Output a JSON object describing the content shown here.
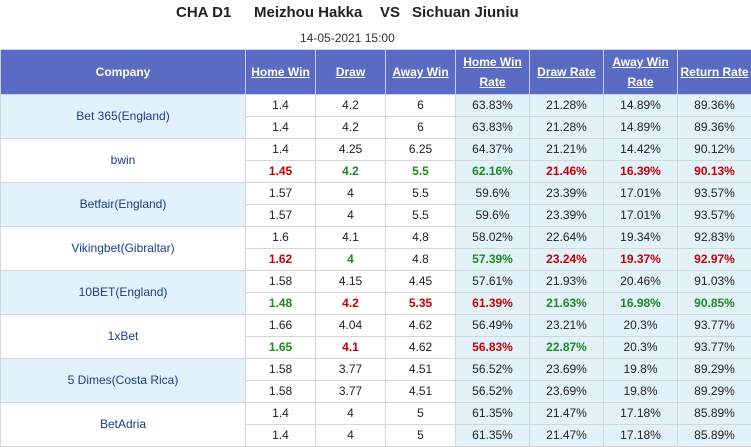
{
  "header": {
    "league": "CHA D1",
    "home_team": "Meizhou Hakka",
    "vs": "VS",
    "away_team": "Sichuan Jiuniu",
    "datetime": "14-05-2021 15:00"
  },
  "columns": {
    "company": "Company",
    "home_win": "Home Win",
    "draw": "Draw",
    "away_win": "Away Win",
    "home_win_rate": "Home Win Rate",
    "draw_rate": "Draw Rate",
    "away_win_rate": "Away Win Rate",
    "return_rate": "Return Rate"
  },
  "colors": {
    "header_bg": "#5a6bc3",
    "red": "#cc0000",
    "green": "#1f8a1f",
    "company_link": "#1a3d8f",
    "rate_bg": "#e2f2fa"
  },
  "rows": [
    {
      "company": "Bet 365(England)",
      "open": {
        "home": {
          "v": "1.4",
          "c": ""
        },
        "draw": {
          "v": "4.2",
          "c": ""
        },
        "away": {
          "v": "6",
          "c": ""
        },
        "hr": {
          "v": "63.83%",
          "c": ""
        },
        "dr": {
          "v": "21.28%",
          "c": ""
        },
        "ar": {
          "v": "14.89%",
          "c": ""
        },
        "rr": {
          "v": "89.36%",
          "c": ""
        }
      },
      "close": {
        "home": {
          "v": "1.4",
          "c": ""
        },
        "draw": {
          "v": "4.2",
          "c": ""
        },
        "away": {
          "v": "6",
          "c": ""
        },
        "hr": {
          "v": "63.83%",
          "c": ""
        },
        "dr": {
          "v": "21.28%",
          "c": ""
        },
        "ar": {
          "v": "14.89%",
          "c": ""
        },
        "rr": {
          "v": "89.36%",
          "c": ""
        }
      }
    },
    {
      "company": "bwin",
      "open": {
        "home": {
          "v": "1.4",
          "c": ""
        },
        "draw": {
          "v": "4.25",
          "c": ""
        },
        "away": {
          "v": "6.25",
          "c": ""
        },
        "hr": {
          "v": "64.37%",
          "c": ""
        },
        "dr": {
          "v": "21.21%",
          "c": ""
        },
        "ar": {
          "v": "14.42%",
          "c": ""
        },
        "rr": {
          "v": "90.12%",
          "c": ""
        }
      },
      "close": {
        "home": {
          "v": "1.45",
          "c": "red"
        },
        "draw": {
          "v": "4.2",
          "c": "green"
        },
        "away": {
          "v": "5.5",
          "c": "green"
        },
        "hr": {
          "v": "62.16%",
          "c": "green"
        },
        "dr": {
          "v": "21.46%",
          "c": "red"
        },
        "ar": {
          "v": "16.39%",
          "c": "red"
        },
        "rr": {
          "v": "90.13%",
          "c": "red"
        }
      }
    },
    {
      "company": "Betfair(England)",
      "open": {
        "home": {
          "v": "1.57",
          "c": ""
        },
        "draw": {
          "v": "4",
          "c": ""
        },
        "away": {
          "v": "5.5",
          "c": ""
        },
        "hr": {
          "v": "59.6%",
          "c": ""
        },
        "dr": {
          "v": "23.39%",
          "c": ""
        },
        "ar": {
          "v": "17.01%",
          "c": ""
        },
        "rr": {
          "v": "93.57%",
          "c": ""
        }
      },
      "close": {
        "home": {
          "v": "1.57",
          "c": ""
        },
        "draw": {
          "v": "4",
          "c": ""
        },
        "away": {
          "v": "5.5",
          "c": ""
        },
        "hr": {
          "v": "59.6%",
          "c": ""
        },
        "dr": {
          "v": "23.39%",
          "c": ""
        },
        "ar": {
          "v": "17.01%",
          "c": ""
        },
        "rr": {
          "v": "93.57%",
          "c": ""
        }
      }
    },
    {
      "company": "Vikingbet(Gibraltar)",
      "open": {
        "home": {
          "v": "1.6",
          "c": ""
        },
        "draw": {
          "v": "4.1",
          "c": ""
        },
        "away": {
          "v": "4.8",
          "c": ""
        },
        "hr": {
          "v": "58.02%",
          "c": ""
        },
        "dr": {
          "v": "22.64%",
          "c": ""
        },
        "ar": {
          "v": "19.34%",
          "c": ""
        },
        "rr": {
          "v": "92.83%",
          "c": ""
        }
      },
      "close": {
        "home": {
          "v": "1.62",
          "c": "red"
        },
        "draw": {
          "v": "4",
          "c": "green"
        },
        "away": {
          "v": "4.8",
          "c": ""
        },
        "hr": {
          "v": "57.39%",
          "c": "green"
        },
        "dr": {
          "v": "23.24%",
          "c": "red"
        },
        "ar": {
          "v": "19.37%",
          "c": "red"
        },
        "rr": {
          "v": "92.97%",
          "c": "red"
        }
      }
    },
    {
      "company": "10BET(England)",
      "open": {
        "home": {
          "v": "1.58",
          "c": ""
        },
        "draw": {
          "v": "4.15",
          "c": ""
        },
        "away": {
          "v": "4.45",
          "c": ""
        },
        "hr": {
          "v": "57.61%",
          "c": ""
        },
        "dr": {
          "v": "21.93%",
          "c": ""
        },
        "ar": {
          "v": "20.46%",
          "c": ""
        },
        "rr": {
          "v": "91.03%",
          "c": ""
        }
      },
      "close": {
        "home": {
          "v": "1.48",
          "c": "green"
        },
        "draw": {
          "v": "4.2",
          "c": "red"
        },
        "away": {
          "v": "5.35",
          "c": "red"
        },
        "hr": {
          "v": "61.39%",
          "c": "red"
        },
        "dr": {
          "v": "21.63%",
          "c": "green"
        },
        "ar": {
          "v": "16.98%",
          "c": "green"
        },
        "rr": {
          "v": "90.85%",
          "c": "green"
        }
      }
    },
    {
      "company": "1xBet",
      "open": {
        "home": {
          "v": "1.66",
          "c": ""
        },
        "draw": {
          "v": "4.04",
          "c": ""
        },
        "away": {
          "v": "4.62",
          "c": ""
        },
        "hr": {
          "v": "56.49%",
          "c": ""
        },
        "dr": {
          "v": "23.21%",
          "c": ""
        },
        "ar": {
          "v": "20.3%",
          "c": ""
        },
        "rr": {
          "v": "93.77%",
          "c": ""
        }
      },
      "close": {
        "home": {
          "v": "1.65",
          "c": "green"
        },
        "draw": {
          "v": "4.1",
          "c": "red"
        },
        "away": {
          "v": "4.62",
          "c": ""
        },
        "hr": {
          "v": "56.83%",
          "c": "red"
        },
        "dr": {
          "v": "22.87%",
          "c": "green"
        },
        "ar": {
          "v": "20.3%",
          "c": ""
        },
        "rr": {
          "v": "93.77%",
          "c": ""
        }
      }
    },
    {
      "company": "5 Dimes(Costa Rica)",
      "open": {
        "home": {
          "v": "1.58",
          "c": ""
        },
        "draw": {
          "v": "3.77",
          "c": ""
        },
        "away": {
          "v": "4.51",
          "c": ""
        },
        "hr": {
          "v": "56.52%",
          "c": ""
        },
        "dr": {
          "v": "23.69%",
          "c": ""
        },
        "ar": {
          "v": "19.8%",
          "c": ""
        },
        "rr": {
          "v": "89.29%",
          "c": ""
        }
      },
      "close": {
        "home": {
          "v": "1.58",
          "c": ""
        },
        "draw": {
          "v": "3.77",
          "c": ""
        },
        "away": {
          "v": "4.51",
          "c": ""
        },
        "hr": {
          "v": "56.52%",
          "c": ""
        },
        "dr": {
          "v": "23.69%",
          "c": ""
        },
        "ar": {
          "v": "19.8%",
          "c": ""
        },
        "rr": {
          "v": "89.29%",
          "c": ""
        }
      }
    },
    {
      "company": "BetAdria",
      "open": {
        "home": {
          "v": "1.4",
          "c": ""
        },
        "draw": {
          "v": "4",
          "c": ""
        },
        "away": {
          "v": "5",
          "c": ""
        },
        "hr": {
          "v": "61.35%",
          "c": ""
        },
        "dr": {
          "v": "21.47%",
          "c": ""
        },
        "ar": {
          "v": "17.18%",
          "c": ""
        },
        "rr": {
          "v": "85.89%",
          "c": ""
        }
      },
      "close": {
        "home": {
          "v": "1.4",
          "c": ""
        },
        "draw": {
          "v": "4",
          "c": ""
        },
        "away": {
          "v": "5",
          "c": ""
        },
        "hr": {
          "v": "61.35%",
          "c": ""
        },
        "dr": {
          "v": "21.47%",
          "c": ""
        },
        "ar": {
          "v": "17.18%",
          "c": ""
        },
        "rr": {
          "v": "85.89%",
          "c": ""
        }
      }
    }
  ]
}
